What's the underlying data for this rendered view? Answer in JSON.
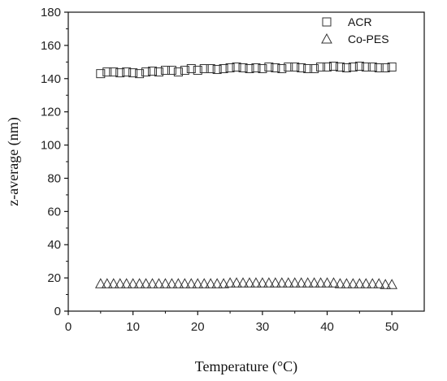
{
  "chart_data": {
    "type": "scatter",
    "xlabel": "Temperature (°C)",
    "ylabel": "z-average (nm)",
    "xlim": [
      0,
      55
    ],
    "ylim": [
      0,
      180
    ],
    "xticks": [
      0,
      10,
      20,
      30,
      40,
      50
    ],
    "yticks": [
      0,
      20,
      40,
      60,
      80,
      100,
      120,
      140,
      160,
      180
    ],
    "legend": "top-right",
    "grid": false,
    "series": [
      {
        "name": "ACR",
        "marker": "square",
        "color": "#333333",
        "x": [
          5,
          6,
          7,
          8,
          9,
          10,
          11,
          12,
          13,
          14,
          15,
          16,
          17,
          18,
          19,
          20,
          21,
          22,
          23,
          24,
          25,
          26,
          27,
          28,
          29,
          30,
          31,
          32,
          33,
          34,
          35,
          36,
          37,
          38,
          39,
          40,
          41,
          42,
          43,
          44,
          45,
          46,
          47,
          48,
          49,
          50
        ],
        "y": [
          143,
          144,
          144,
          143.5,
          144,
          143.5,
          143,
          144,
          144.5,
          144,
          145,
          145,
          144,
          145,
          146,
          145,
          146,
          146,
          145.5,
          146,
          146.5,
          147,
          146.5,
          146,
          146.5,
          146,
          147,
          146.5,
          146,
          147,
          147,
          146.5,
          146,
          146,
          147,
          147,
          147.5,
          147,
          146.5,
          147,
          147.5,
          147,
          147,
          146.5,
          146.5,
          147
        ]
      },
      {
        "name": "Co-PES",
        "marker": "triangle",
        "color": "#333333",
        "x": [
          5,
          6,
          7,
          8,
          9,
          10,
          11,
          12,
          13,
          14,
          15,
          16,
          17,
          18,
          19,
          20,
          21,
          22,
          23,
          24,
          25,
          26,
          27,
          28,
          29,
          30,
          31,
          32,
          33,
          34,
          35,
          36,
          37,
          38,
          39,
          40,
          41,
          42,
          43,
          44,
          45,
          46,
          47,
          48,
          49,
          50
        ],
        "y": [
          16.5,
          16.5,
          16.5,
          16.5,
          16.5,
          16.5,
          16.5,
          16.5,
          16.5,
          16.5,
          16.5,
          16.5,
          16.5,
          16.5,
          16.5,
          16.5,
          16.5,
          16.5,
          16.5,
          16.5,
          17,
          17,
          17,
          17,
          17,
          17,
          17,
          17,
          17,
          17,
          17,
          17,
          17,
          17,
          17,
          17,
          17,
          16.5,
          16.5,
          16.5,
          16.5,
          16.5,
          16.5,
          16.5,
          16,
          16
        ]
      }
    ]
  }
}
